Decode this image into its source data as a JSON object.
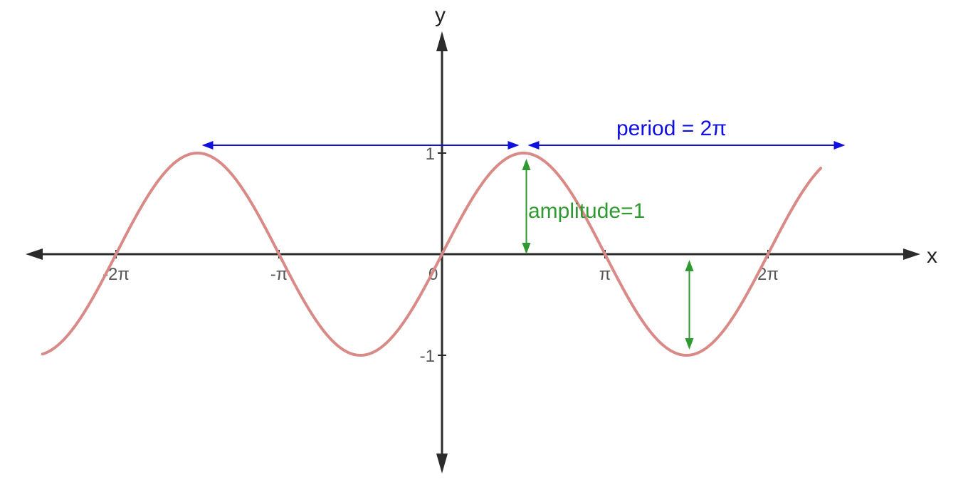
{
  "chart_data": {
    "type": "line",
    "title": "",
    "xlabel": "x",
    "ylabel": "y",
    "xlim": [
      -7.8,
      7.9
    ],
    "ylim": [
      -2.1,
      2.1
    ],
    "grid": false,
    "x_ticks": [
      {
        "value": -6.2832,
        "label": "-2π"
      },
      {
        "value": -3.1416,
        "label": "-π"
      },
      {
        "value": 0,
        "label": "0"
      },
      {
        "value": 3.1416,
        "label": "π"
      },
      {
        "value": 6.2832,
        "label": "2π"
      }
    ],
    "y_ticks": [
      {
        "value": 1,
        "label": "1"
      },
      {
        "value": -1,
        "label": "-1"
      }
    ],
    "series": [
      {
        "function": "sin",
        "amplitude": 1,
        "period": 6.2832,
        "x_range": [
          -7.7,
          7.3
        ],
        "color": "#d98a87"
      }
    ],
    "annotations": [
      {
        "kind": "period",
        "text": "period = 2π",
        "color": "#1010e0",
        "spans": [
          {
            "x_from": -4.7124,
            "x_to": 1.5708,
            "y": 1
          },
          {
            "x_from": 1.5708,
            "x_to": 7.854,
            "y": 1
          }
        ]
      },
      {
        "kind": "amplitude",
        "text": "amplitude=1",
        "color": "#2f9a2f",
        "arrows": [
          {
            "x": 1.5708,
            "y_from": 0,
            "y_to": 1
          },
          {
            "x": 4.7124,
            "y_from": 0,
            "y_to": -1
          }
        ]
      }
    ],
    "colors": {
      "axis": "#2b2b2b",
      "tick_text": "#555555"
    }
  }
}
